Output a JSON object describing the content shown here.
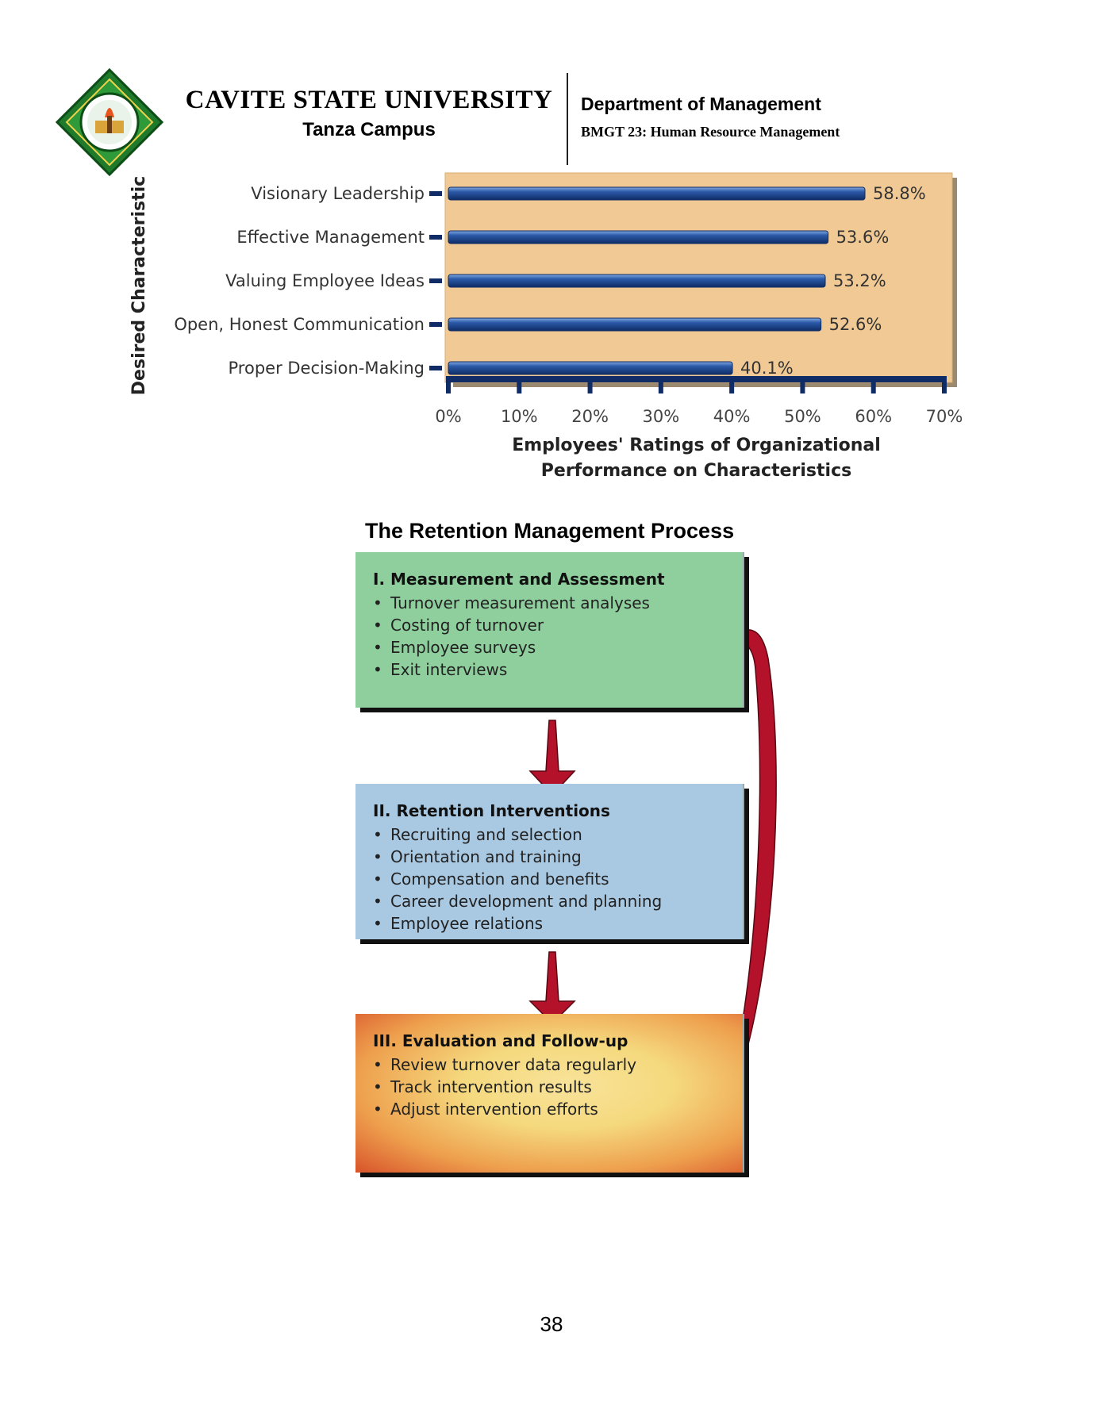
{
  "header": {
    "logo_icon": "cavite-state-university-seal",
    "university": "CAVITE STATE UNIVERSITY",
    "campus": "Tanza Campus",
    "department": "Department of Management",
    "course": "BMGT 23: Human Resource Management"
  },
  "chart_data": {
    "type": "bar",
    "orientation": "horizontal",
    "categories": [
      "Visionary Leadership",
      "Effective Management",
      "Valuing Employee Ideas",
      "Open, Honest Communication",
      "Proper Decision-Making"
    ],
    "values": [
      58.8,
      53.6,
      53.2,
      52.6,
      40.1
    ],
    "data_labels": [
      "58.8%",
      "53.6%",
      "53.2%",
      "52.6%",
      "40.1%"
    ],
    "xlabel_line1": "Employees' Ratings of Organizational",
    "xlabel_line2": "Performance on Characteristics",
    "ylabel": "Desired Characteristic",
    "xlim": [
      0,
      70
    ],
    "x_ticks": [
      "0%",
      "10%",
      "20%",
      "30%",
      "40%",
      "50%",
      "60%",
      "70%"
    ],
    "colors": {
      "panel": "#f1c994",
      "bar": "#2b5aa8",
      "bar_dark": "#0f2c66"
    },
    "grid": false,
    "legend": "none"
  },
  "process": {
    "title": "The Retention Management Process",
    "stages": [
      {
        "heading": "I. Measurement and Assessment",
        "items": [
          "Turnover measurement analyses",
          "Costing of turnover",
          "Employee surveys",
          "Exit interviews"
        ]
      },
      {
        "heading": "II. Retention Interventions",
        "items": [
          "Recruiting and selection",
          "Orientation and training",
          "Compensation and benefits",
          "Career development and planning",
          "Employee relations"
        ]
      },
      {
        "heading": "III. Evaluation and Follow-up",
        "items": [
          "Review turnover data regularly",
          "Track intervention results",
          "Adjust intervention efforts"
        ]
      }
    ],
    "arrow_color": "#b3122a"
  },
  "footer": {
    "page_number": "38"
  }
}
